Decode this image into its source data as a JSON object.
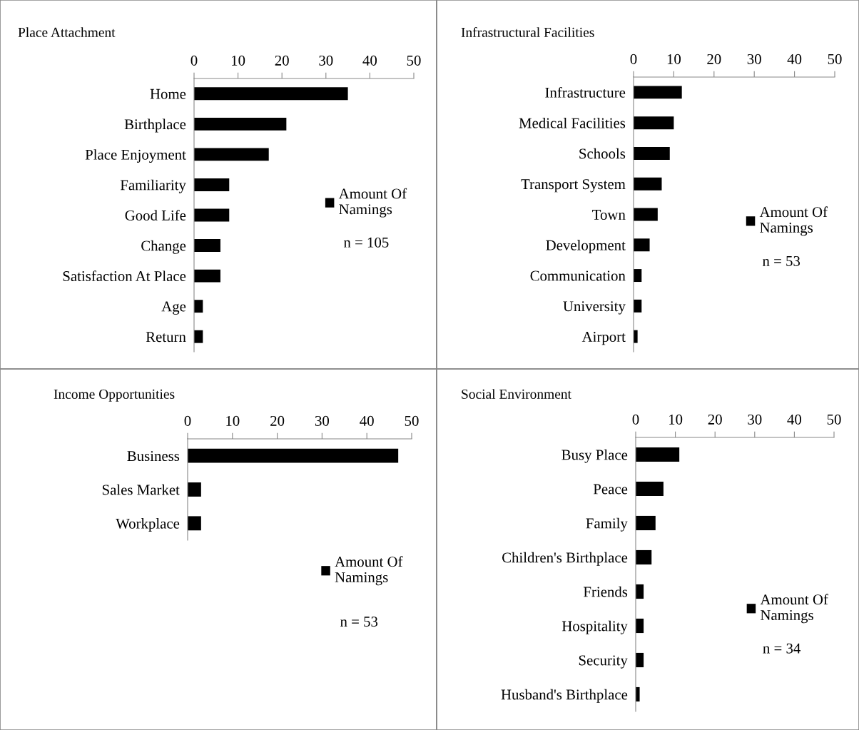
{
  "chart_data": [
    {
      "type": "bar",
      "orientation": "horizontal",
      "title": "Place Attachment",
      "categories": [
        "Home",
        "Birthplace",
        "Place Enjoyment",
        "Familiarity",
        "Good Life",
        "Change",
        "Satisfaction At Place",
        "Age",
        "Return"
      ],
      "series": [
        {
          "name": "Amount Of Namings",
          "color": "#000000",
          "values": [
            35,
            21,
            17,
            8,
            8,
            6,
            6,
            2,
            2
          ]
        }
      ],
      "xlim": [
        0,
        50
      ],
      "xticks": [
        0,
        10,
        20,
        30,
        40,
        50
      ],
      "grid": false,
      "legend": "right",
      "annotations": [
        "n = 105"
      ]
    },
    {
      "type": "bar",
      "orientation": "horizontal",
      "title": "Infrastructural Facilities",
      "categories": [
        "Infrastructure",
        "Medical Facilities",
        "Schools",
        "Transport System",
        "Town",
        "Development",
        "Communication",
        "University",
        "Airport"
      ],
      "series": [
        {
          "name": "Amount Of Namings",
          "color": "#000000",
          "values": [
            12,
            10,
            9,
            7,
            6,
            4,
            2,
            2,
            1
          ]
        }
      ],
      "xlim": [
        0,
        50
      ],
      "xticks": [
        0,
        10,
        20,
        30,
        40,
        50
      ],
      "grid": false,
      "legend": "right",
      "annotations": [
        "n = 53"
      ]
    },
    {
      "type": "bar",
      "orientation": "horizontal",
      "title": "Income Opportunities",
      "categories": [
        "Business",
        "Sales Market",
        "Workplace"
      ],
      "series": [
        {
          "name": "Amount Of Namings",
          "color": "#000000",
          "values": [
            47,
            3,
            3
          ]
        }
      ],
      "xlim": [
        0,
        50
      ],
      "xticks": [
        0,
        10,
        20,
        30,
        40,
        50
      ],
      "grid": false,
      "legend": "right",
      "annotations": [
        "n = 53"
      ]
    },
    {
      "type": "bar",
      "orientation": "horizontal",
      "title": "Social Environment",
      "categories": [
        "Busy Place",
        "Peace",
        "Family",
        "Children's Birthplace",
        "Friends",
        "Hospitality",
        "Security",
        "Husband's Birthplace"
      ],
      "series": [
        {
          "name": "Amount Of Namings",
          "color": "#000000",
          "values": [
            11,
            7,
            5,
            4,
            2,
            2,
            2,
            1
          ]
        }
      ],
      "xlim": [
        0,
        50
      ],
      "xticks": [
        0,
        10,
        20,
        30,
        40,
        50
      ],
      "grid": false,
      "legend": "right",
      "annotations": [
        "n = 34"
      ]
    }
  ]
}
